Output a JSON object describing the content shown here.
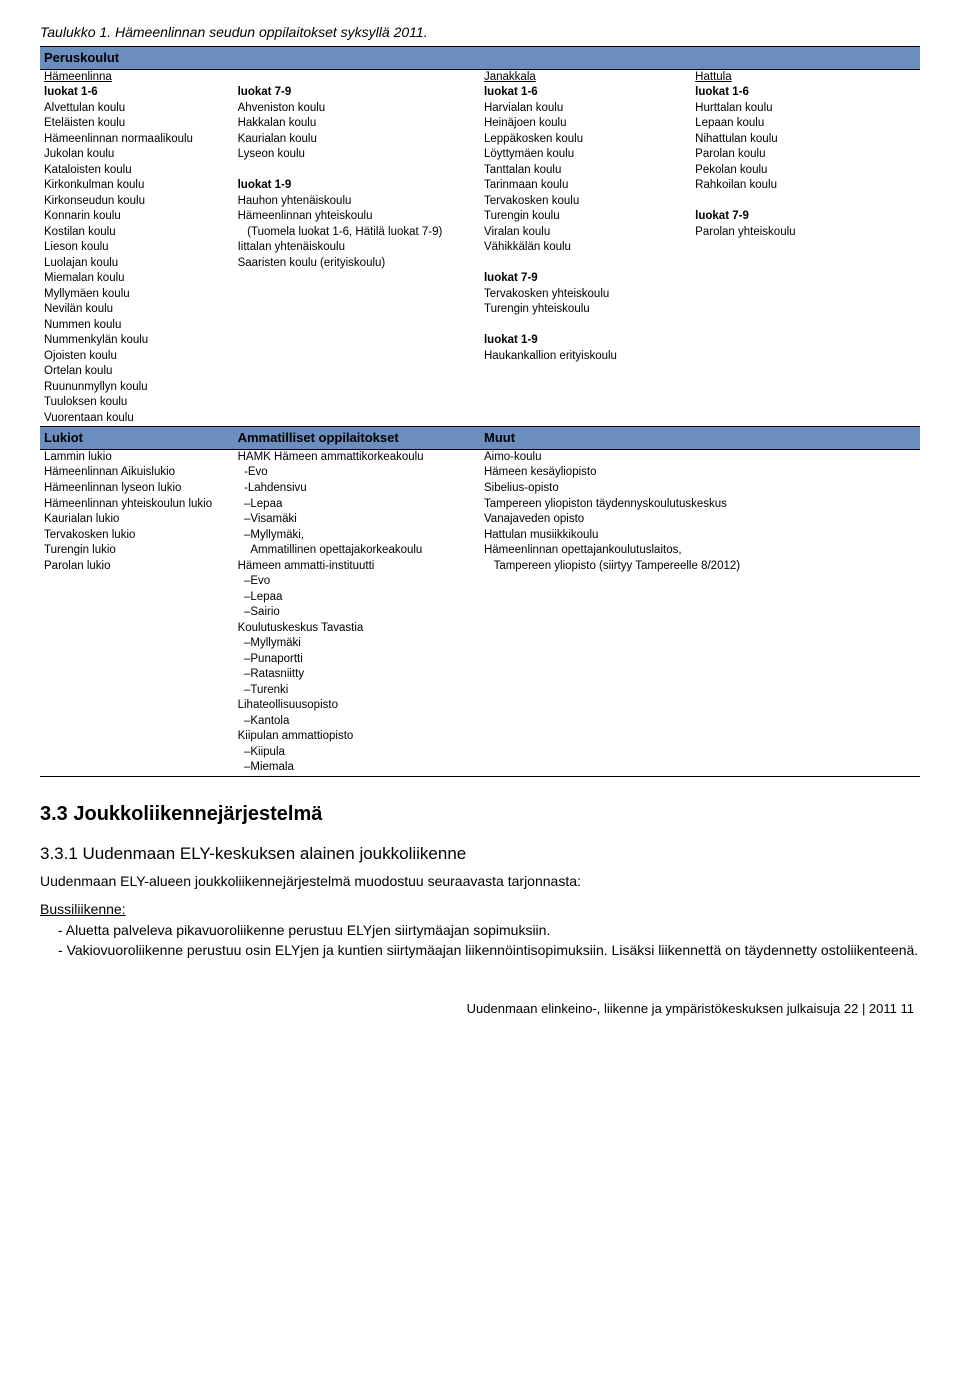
{
  "caption": "Taulukko 1. Hämeenlinnan seudun oppilaitokset syksyllä 2011.",
  "colors": {
    "header_bg": "#6c8ebf",
    "border": "#000000",
    "text": "#000000",
    "page_bg": "#ffffff"
  },
  "sections": {
    "peruskoulut": {
      "title": "Peruskoulut",
      "cols": {
        "c1": {
          "header": "Hämeenlinna",
          "sub1": "luokat 1-6",
          "items1": [
            "Alvettulan koulu",
            "Eteläisten koulu",
            "Hämeenlinnan normaalikoulu",
            "Jukolan koulu",
            "Kataloisten koulu",
            "Kirkonkulman koulu",
            "Kirkonseudun koulu",
            "Konnarin koulu",
            "Kostilan koulu",
            "Lieson koulu",
            "Luolajan koulu",
            "Miemalan koulu",
            "Myllymäen koulu",
            "Nevilän koulu",
            "Nummen koulu",
            "Nummenkylän koulu",
            "Ojoisten koulu",
            "Ortelan koulu",
            "Ruununmyllyn koulu",
            "Tuuloksen koulu",
            "Vuorentaan koulu"
          ]
        },
        "c2": {
          "sub1": "luokat 7-9",
          "items1": [
            "Ahveniston koulu",
            "Hakkalan koulu",
            "Kaurialan koulu",
            "Lyseon koulu"
          ],
          "blank": "",
          "sub2": "luokat 1-9",
          "items2": [
            "Hauhon yhtenäiskoulu",
            "Hämeenlinnan yhteiskoulu",
            "   (Tuomela luokat 1-6, Hätilä luokat 7-9)",
            "Iittalan yhtenäiskoulu",
            "Saaristen koulu (erityiskoulu)"
          ]
        },
        "c3": {
          "header": "Janakkala",
          "sub1": "luokat 1-6",
          "items1": [
            "Harvialan koulu",
            "Heinäjoen koulu",
            "Leppäkosken koulu",
            "Löyttymäen koulu",
            "Tanttalan koulu",
            "Tarinmaan koulu",
            "Tervakosken koulu",
            "Turengin koulu",
            "Viralan koulu",
            "Vähikkälän koulu"
          ],
          "blank": "",
          "sub2": "luokat 7-9",
          "items2": [
            "Tervakosken yhteiskoulu",
            "Turengin yhteiskoulu"
          ],
          "blank2": "",
          "sub3": "luokat 1-9",
          "items3": [
            "Haukankallion erityiskoulu"
          ]
        },
        "c4": {
          "header": "Hattula",
          "sub1": "luokat 1-6",
          "items1": [
            "Hurttalan koulu",
            "Lepaan koulu",
            "Nihattulan koulu",
            "Parolan koulu",
            "Pekolan koulu",
            "Rahkoilan koulu"
          ],
          "blank": "",
          "sub2": "luokat 7-9",
          "items2": [
            "Parolan yhteiskoulu"
          ]
        }
      }
    },
    "lower": {
      "headers": [
        "Lukiot",
        "Ammatilliset oppilaitokset",
        "Muut"
      ],
      "c1": [
        "Lammin lukio",
        "Hämeenlinnan Aikuislukio",
        "Hämeenlinnan lyseon lukio",
        "Hämeenlinnan yhteiskoulun lukio",
        "Kaurialan lukio",
        "Tervakosken lukio",
        "Turengin lukio",
        "Parolan lukio"
      ],
      "c2": [
        "HAMK Hämeen ammattikorkeakoulu",
        "  -Evo",
        "  -Lahdensivu",
        "  –Lepaa",
        "  –Visamäki",
        "  –Myllymäki,",
        "    Ammatillinen opettajakorkeakoulu",
        "Hämeen ammatti-instituutti",
        "  –Evo",
        "  –Lepaa",
        "  –Sairio",
        "Koulutuskeskus Tavastia",
        "  –Myllymäki",
        "  –Punaportti",
        "  –Ratasniitty",
        "  –Turenki",
        "Lihateollisuusopisto",
        "  –Kantola",
        "Kiipulan ammattiopisto",
        "  –Kiipula",
        "  –Miemala"
      ],
      "c3": [
        "Aimo-koulu",
        "Hämeen kesäyliopisto",
        "Sibelius-opisto",
        "Tampereen yliopiston täydennyskoulutuskeskus",
        "Vanajaveden opisto",
        "Hattulan musiikkikoulu",
        "Hämeenlinnan opettajankoulutuslaitos,",
        "   Tampereen yliopisto (siirtyy Tampereelle 8/2012)"
      ]
    }
  },
  "h2": "3.3 Joukkoliikennejärjestelmä",
  "h3": "3.3.1 Uudenmaan ELY-keskuksen alainen joukkoliikenne",
  "para": "Uudenmaan ELY-alueen joukkoliikennejärjestelmä muodostuu seuraavasta tarjonnasta:",
  "bullet_head": "Bussiliikenne:",
  "bullets": [
    "Aluetta palveleva pikavuoroliikenne perustuu ELYjen siirtymäajan sopimuksiin.",
    "Vakiovuoroliikenne perustuu osin ELYjen ja kuntien siirtymäajan liikennöintisopimuksiin. Lisäksi liikennettä on täydennetty ostoliikenteenä."
  ],
  "footer": "Uudenmaan elinkeino-, liikenne ja ympäristökeskuksen julkaisuja 22 | 2011       11"
}
